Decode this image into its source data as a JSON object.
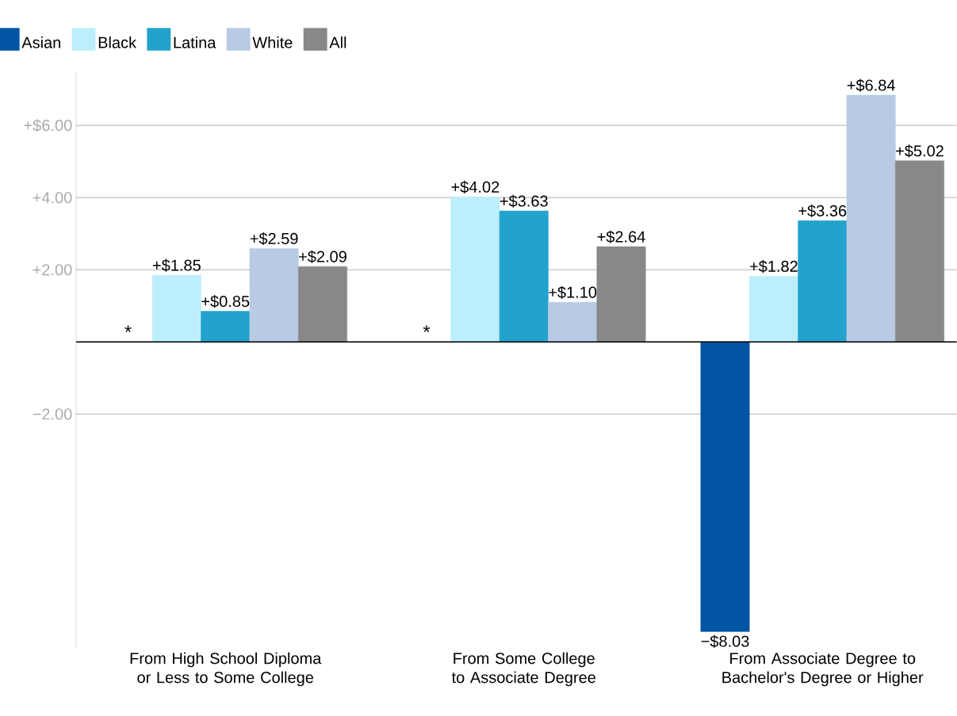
{
  "chart_data": {
    "type": "bar",
    "categories": [
      "From High School Diploma or Less to Some College",
      "From Some College to Associate Degree",
      "From Associate Degree to Bachelor's Degree or Higher"
    ],
    "series": [
      {
        "name": "Asian",
        "color": "#0054a3",
        "values": [
          null,
          null,
          -8.03
        ],
        "value_labels": [
          null,
          null,
          "−$8.03"
        ]
      },
      {
        "name": "Black",
        "color": "#bdeefb",
        "values": [
          1.85,
          4.02,
          1.82
        ],
        "value_labels": [
          "+$1.85",
          "+$4.02",
          "+$1.82"
        ]
      },
      {
        "name": "Latina",
        "color": "#21a3cc",
        "values": [
          0.85,
          3.63,
          3.36
        ],
        "value_labels": [
          "+$0.85",
          "+$3.63",
          "+$3.36"
        ]
      },
      {
        "name": "White",
        "color": "#b9cae5",
        "values": [
          2.59,
          1.1,
          6.84
        ],
        "value_labels": [
          "+$2.59",
          "+$1.10",
          "+$6.84"
        ]
      },
      {
        "name": "All",
        "color": "#888888",
        "values": [
          2.09,
          2.64,
          5.02
        ],
        "value_labels": [
          "+$2.09",
          "+$2.64",
          "+$5.02"
        ]
      }
    ],
    "ylim": [
      -8.5,
      7.5
    ],
    "yticks": [
      {
        "value": -2,
        "label": "−2.00"
      },
      {
        "value": 0,
        "label": null
      },
      {
        "value": 2,
        "label": "+2.00"
      },
      {
        "value": 4,
        "label": "+4.00"
      },
      {
        "value": 6,
        "label": "+$6.00"
      }
    ],
    "grid": "y",
    "legend": "top left",
    "annotations": [
      "*",
      "*"
    ]
  }
}
